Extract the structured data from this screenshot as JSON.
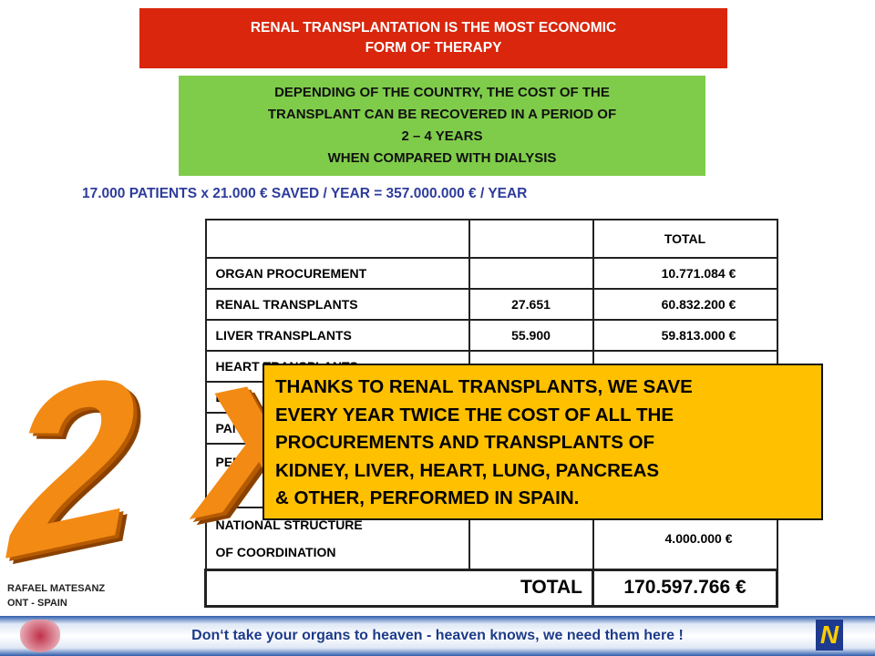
{
  "header": {
    "title_lines": [
      "RENAL TRANSPLANTATION IS THE MOST ECONOMIC",
      "FORM  OF THERAPY"
    ]
  },
  "note": {
    "lines": [
      "DEPENDING OF THE COUNTRY, THE COST OF THE",
      "TRANSPLANT CAN BE RECOVERED IN A PERIOD OF",
      "2 – 4 YEARS",
      "WHEN COMPARED WITH DIALYSIS"
    ]
  },
  "savings": "17.000 PATIENTS  x 21.000 € SAVED / YEAR = 357.000.000 € / YEAR",
  "table": {
    "header": [
      null,
      null,
      "TOTAL"
    ],
    "rows": [
      [
        "ORGAN PROCUREMENT",
        null,
        "10.771.084 €"
      ],
      [
        "RENAL TRANSPLANTS",
        "27.651",
        "60.832.200 €"
      ],
      [
        "LIVER TRANSPLANTS",
        "55.900",
        "59.813.000 €"
      ],
      [
        "HEART TRANSPLANTS",
        null,
        null
      ],
      [
        "LUNG",
        null,
        null
      ],
      [
        "PANC",
        null,
        null
      ],
      [
        "PERI\nOF C",
        null,
        null
      ],
      [
        "NATIONAL STRUCTURE\nOF COORDINATION",
        null,
        "4.000.000 €"
      ]
    ],
    "total": [
      "TOTAL",
      "170.597.766 €"
    ]
  },
  "emblem": [
    "2",
    "x"
  ],
  "callout": {
    "lines": [
      "THANKS TO RENAL TRANSPLANTS, WE SAVE",
      "EVERY YEAR TWICE THE COST OF ALL THE",
      "PROCUREMENTS AND TRANSPLANTS OF",
      "KIDNEY, LIVER, HEART, LUNG, PANCREAS",
      "& OTHER, PERFORMED IN SPAIN."
    ]
  },
  "author": [
    "RAFAEL MATESANZ",
    "ONT  -  SPAIN"
  ],
  "footer": {
    "slogan": "Don‘t take your organs to heaven - heaven knows, we need them here !",
    "logo": "N"
  }
}
